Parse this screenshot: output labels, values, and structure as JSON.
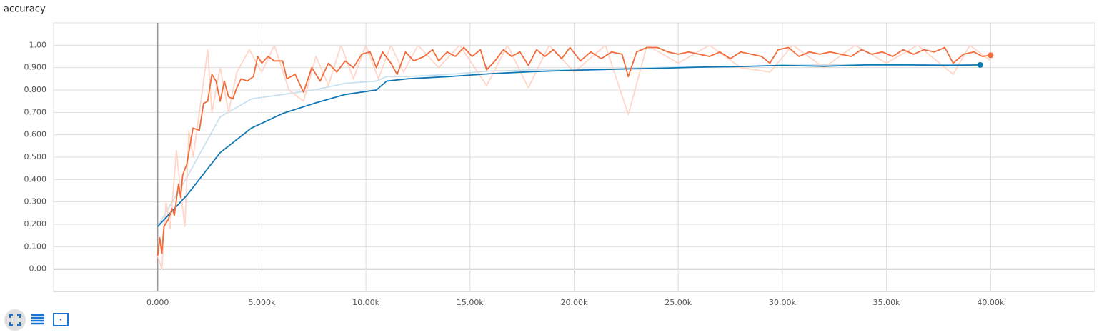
{
  "chart_data": {
    "type": "line",
    "title": "accuracy",
    "xlim": [
      -5000,
      45000
    ],
    "ylim": [
      -0.1,
      1.1
    ],
    "grid": true,
    "xticks": [
      {
        "value": 0,
        "label": "0.000"
      },
      {
        "value": 5000,
        "label": "5.000k"
      },
      {
        "value": 10000,
        "label": "10.00k"
      },
      {
        "value": 15000,
        "label": "15.00k"
      },
      {
        "value": 20000,
        "label": "20.00k"
      },
      {
        "value": 25000,
        "label": "25.00k"
      },
      {
        "value": 30000,
        "label": "30.00k"
      },
      {
        "value": 35000,
        "label": "35.00k"
      },
      {
        "value": 40000,
        "label": "40.00k"
      }
    ],
    "yticks": [
      {
        "value": 0,
        "label": "0.00"
      },
      {
        "value": 0.1,
        "label": "0.100"
      },
      {
        "value": 0.2,
        "label": "0.200"
      },
      {
        "value": 0.3,
        "label": "0.300"
      },
      {
        "value": 0.4,
        "label": "0.400"
      },
      {
        "value": 0.5,
        "label": "0.500"
      },
      {
        "value": 0.6,
        "label": "0.600"
      },
      {
        "value": 0.7,
        "label": "0.700"
      },
      {
        "value": 0.8,
        "label": "0.800"
      },
      {
        "value": 0.9,
        "label": "0.900"
      },
      {
        "value": 1,
        "label": "1.00"
      }
    ],
    "series": [
      {
        "color": "#c9e1ef",
        "marker_last": false,
        "x": [
          0,
          1400,
          3000,
          4500,
          6000,
          7500,
          9000,
          10500,
          11000,
          12000,
          14000,
          16000,
          18000,
          20000,
          24000,
          28000,
          30000,
          34000,
          39500
        ],
        "values": [
          0.19,
          0.41,
          0.68,
          0.76,
          0.78,
          0.8,
          0.83,
          0.84,
          0.86,
          0.86,
          0.87,
          0.885,
          0.89,
          0.89,
          0.9,
          0.905,
          0.91,
          0.915,
          0.912
        ]
      },
      {
        "color": "#ffd6c8",
        "marker_last": false,
        "x": [
          0,
          200,
          400,
          600,
          900,
          1100,
          1300,
          1500,
          1700,
          2000,
          2400,
          2600,
          3000,
          3400,
          3800,
          4400,
          5000,
          5600,
          6300,
          7000,
          7600,
          8200,
          8800,
          9400,
          10000,
          10600,
          11200,
          11800,
          12500,
          13500,
          14500,
          15800,
          16800,
          17800,
          18800,
          20000,
          21500,
          22600,
          23500,
          25000,
          26500,
          28000,
          29400,
          30500,
          32000,
          33500,
          35000,
          36500,
          38200,
          39000,
          40000
        ],
        "values": [
          0.06,
          0.0,
          0.3,
          0.18,
          0.53,
          0.35,
          0.19,
          0.62,
          0.5,
          0.7,
          0.98,
          0.7,
          0.9,
          0.7,
          0.88,
          0.98,
          0.88,
          1.0,
          0.8,
          0.75,
          0.95,
          0.82,
          1.0,
          0.85,
          1.0,
          0.85,
          1.0,
          0.88,
          1.0,
          0.9,
          1.0,
          0.82,
          1.0,
          0.81,
          1.0,
          0.88,
          1.0,
          0.69,
          1.0,
          0.92,
          1.0,
          0.9,
          0.88,
          1.0,
          0.9,
          1.0,
          0.92,
          1.0,
          0.87,
          1.0,
          0.93
        ]
      },
      {
        "color": "#0f77b4",
        "marker_last": true,
        "x": [
          0,
          1400,
          3000,
          4500,
          6000,
          7500,
          9000,
          10500,
          11000,
          12000,
          14000,
          16000,
          18000,
          20000,
          22000,
          24000,
          26000,
          28000,
          30000,
          32000,
          34000,
          36000,
          38000,
          39500
        ],
        "values": [
          0.19,
          0.33,
          0.52,
          0.63,
          0.695,
          0.74,
          0.78,
          0.8,
          0.84,
          0.85,
          0.86,
          0.873,
          0.882,
          0.888,
          0.893,
          0.897,
          0.902,
          0.905,
          0.91,
          0.906,
          0.912,
          0.912,
          0.91,
          0.912
        ]
      },
      {
        "color": "#f26b3a",
        "marker_last": true,
        "x": [
          0,
          100,
          200,
          300,
          500,
          700,
          800,
          1000,
          1100,
          1200,
          1400,
          1600,
          1700,
          2000,
          2200,
          2400,
          2600,
          2800,
          3000,
          3200,
          3400,
          3600,
          3800,
          4000,
          4300,
          4600,
          4800,
          5000,
          5300,
          5600,
          6000,
          6200,
          6600,
          7000,
          7400,
          7800,
          8200,
          8600,
          9000,
          9400,
          9800,
          10200,
          10500,
          10800,
          11200,
          11500,
          11900,
          12300,
          12800,
          13200,
          13500,
          13900,
          14300,
          14700,
          15100,
          15500,
          15800,
          16200,
          16600,
          17000,
          17400,
          17800,
          18200,
          18600,
          19000,
          19400,
          19800,
          20300,
          20800,
          21300,
          21800,
          22300,
          22600,
          23000,
          23500,
          24000,
          24500,
          25000,
          25500,
          26000,
          26500,
          27000,
          27500,
          28000,
          28500,
          29000,
          29400,
          29800,
          30300,
          30800,
          31300,
          31800,
          32300,
          32800,
          33300,
          33800,
          34300,
          34800,
          35300,
          35800,
          36300,
          36800,
          37300,
          37800,
          38200,
          38700,
          39200,
          39600,
          40000
        ],
        "values": [
          0.06,
          0.14,
          0.07,
          0.19,
          0.22,
          0.27,
          0.24,
          0.38,
          0.32,
          0.42,
          0.47,
          0.58,
          0.63,
          0.62,
          0.74,
          0.75,
          0.87,
          0.84,
          0.75,
          0.84,
          0.77,
          0.76,
          0.81,
          0.85,
          0.84,
          0.86,
          0.95,
          0.92,
          0.95,
          0.93,
          0.93,
          0.85,
          0.87,
          0.79,
          0.9,
          0.84,
          0.92,
          0.88,
          0.93,
          0.9,
          0.96,
          0.97,
          0.9,
          0.97,
          0.92,
          0.87,
          0.97,
          0.93,
          0.95,
          0.98,
          0.93,
          0.97,
          0.95,
          0.99,
          0.95,
          0.98,
          0.89,
          0.93,
          0.98,
          0.95,
          0.97,
          0.91,
          0.98,
          0.95,
          0.98,
          0.94,
          0.99,
          0.93,
          0.97,
          0.94,
          0.97,
          0.96,
          0.86,
          0.97,
          0.99,
          0.99,
          0.97,
          0.96,
          0.97,
          0.96,
          0.95,
          0.97,
          0.94,
          0.97,
          0.96,
          0.95,
          0.92,
          0.98,
          0.99,
          0.95,
          0.97,
          0.96,
          0.97,
          0.96,
          0.95,
          0.98,
          0.96,
          0.97,
          0.95,
          0.98,
          0.96,
          0.98,
          0.97,
          0.99,
          0.92,
          0.96,
          0.97,
          0.95,
          0.955
        ]
      }
    ]
  }
}
